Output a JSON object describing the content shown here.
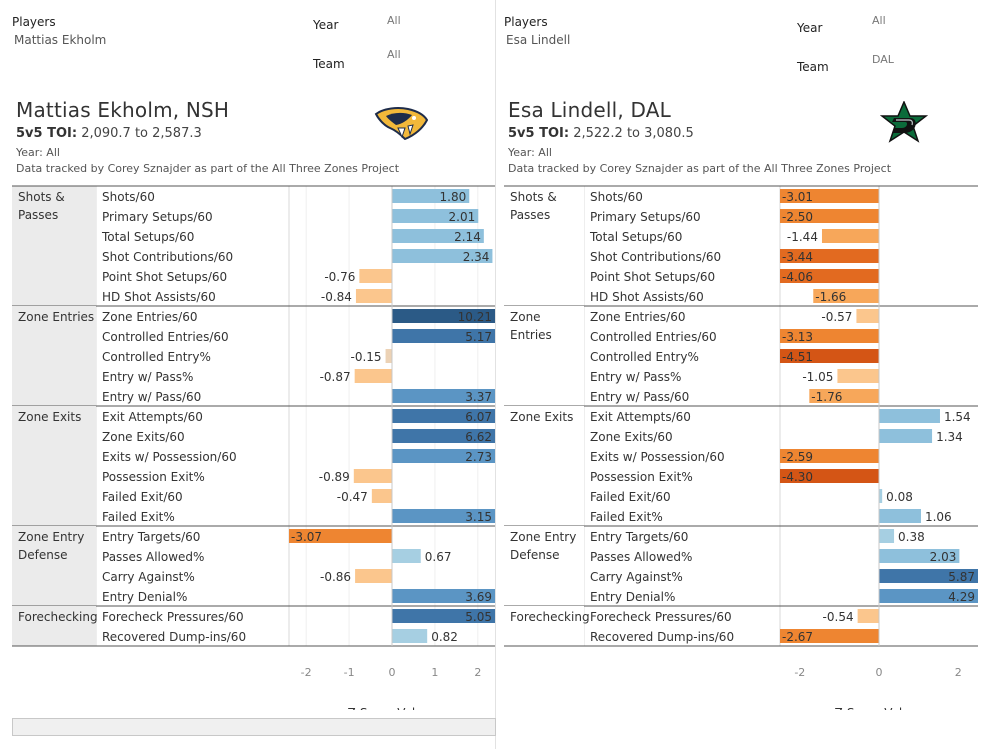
{
  "left": {
    "filters": {
      "players_label": "Players",
      "players_value": "Mattias Ekholm",
      "year_label": "Year",
      "year_value": "All",
      "team_label": "Team",
      "team_value": "All"
    },
    "title": "Mattias Ekholm, NSH",
    "toi_label": "5v5 TOI:",
    "toi_value": "2,090.7 to 2,587.3",
    "year_line": "Year: All",
    "credit": "Data tracked by Corey Sznajder as part of the All Three Zones Project",
    "logo": "nashville-predators-logo-icon"
  },
  "right": {
    "filters": {
      "players_label": "Players",
      "players_value": "Esa Lindell",
      "year_label": "Year",
      "year_value": "All",
      "team_label": "Team",
      "team_value": "DAL"
    },
    "title": "Esa Lindell, DAL",
    "toi_label": "5v5 TOI:",
    "toi_value": "2,522.2 to 3,080.5",
    "year_line": "Year: All",
    "credit": "Data tracked by Corey Sznajder as part of the All Three Zones Project",
    "logo": "dallas-stars-logo-icon"
  },
  "colors": {
    "pos_light": "#a6cfe2",
    "pos_mid": "#8ec0dc",
    "pos_dark1": "#5b95c4",
    "pos_dark2": "#3f75a8",
    "pos_darkest": "#2b5a86",
    "neg_light": "#fbc68d",
    "neg_mid": "#f7a75a",
    "neg_dark": "#ee8531",
    "neg_darker": "#e26a20",
    "neg_darkest": "#d45515",
    "neutral_light": "#ecd2b5",
    "group_bg": "#ebebeb"
  },
  "chart_data": [
    {
      "type": "bar",
      "title": "Mattias Ekholm, NSH",
      "xlabel": "Z-Score Values",
      "xlim": [
        -2.4,
        2.4
      ],
      "xticks": [
        -2,
        -1,
        0,
        1,
        2
      ],
      "groups": [
        {
          "name": "Shots & Passes",
          "items": [
            {
              "label": "Shots/60",
              "value": 1.8,
              "text": "1.80"
            },
            {
              "label": "Primary Setups/60",
              "value": 2.01,
              "text": "2.01"
            },
            {
              "label": "Total Setups/60",
              "value": 2.14,
              "text": "2.14"
            },
            {
              "label": "Shot Contributions/60",
              "value": 2.34,
              "text": "2.34"
            },
            {
              "label": "Point Shot Setups/60",
              "value": -0.76,
              "text": "-0.76"
            },
            {
              "label": "HD Shot Assists/60",
              "value": -0.84,
              "text": "-0.84"
            }
          ]
        },
        {
          "name": "Zone Entries",
          "items": [
            {
              "label": "Zone Entries/60",
              "value": 10.21,
              "text": "10.21"
            },
            {
              "label": "Controlled Entries/60",
              "value": 5.17,
              "text": "5.17"
            },
            {
              "label": "Controlled Entry%",
              "value": -0.15,
              "text": "-0.15"
            },
            {
              "label": "Entry w/ Pass%",
              "value": -0.87,
              "text": "-0.87"
            },
            {
              "label": "Entry w/ Pass/60",
              "value": 3.37,
              "text": "3.37"
            }
          ]
        },
        {
          "name": "Zone Exits",
          "items": [
            {
              "label": "Exit Attempts/60",
              "value": 6.07,
              "text": "6.07"
            },
            {
              "label": "Zone Exits/60",
              "value": 6.62,
              "text": "6.62"
            },
            {
              "label": "Exits w/ Possession/60",
              "value": 2.73,
              "text": "2.73"
            },
            {
              "label": "Possession Exit%",
              "value": -0.89,
              "text": "-0.89"
            },
            {
              "label": "Failed Exit/60",
              "value": -0.47,
              "text": "-0.47"
            },
            {
              "label": "Failed Exit%",
              "value": 3.15,
              "text": "3.15"
            }
          ]
        },
        {
          "name": "Zone Entry Defense",
          "items": [
            {
              "label": "Entry Targets/60",
              "value": -3.07,
              "text": "-3.07"
            },
            {
              "label": "Passes Allowed%",
              "value": 0.67,
              "text": "0.67"
            },
            {
              "label": "Carry Against%",
              "value": -0.86,
              "text": "-0.86"
            },
            {
              "label": "Entry Denial%",
              "value": 3.69,
              "text": "3.69"
            }
          ]
        },
        {
          "name": "Forechecking",
          "items": [
            {
              "label": "Forecheck Pressures/60",
              "value": 5.05,
              "text": "5.05"
            },
            {
              "label": "Recovered Dump-ins/60",
              "value": 0.82,
              "text": "0.82"
            }
          ]
        }
      ]
    },
    {
      "type": "bar",
      "title": "Esa Lindell, DAL",
      "xlabel": "Z-Score Values",
      "xlim": [
        -2.5,
        2.5
      ],
      "xticks": [
        -2,
        0,
        2
      ],
      "groups": [
        {
          "name": "Shots & Passes",
          "items": [
            {
              "label": "Shots/60",
              "value": -3.01,
              "text": "-3.01"
            },
            {
              "label": "Primary Setups/60",
              "value": -2.5,
              "text": "-2.50"
            },
            {
              "label": "Total Setups/60",
              "value": -1.44,
              "text": "-1.44"
            },
            {
              "label": "Shot Contributions/60",
              "value": -3.44,
              "text": "-3.44"
            },
            {
              "label": "Point Shot Setups/60",
              "value": -4.06,
              "text": "-4.06"
            },
            {
              "label": "HD Shot Assists/60",
              "value": -1.66,
              "text": "-1.66"
            }
          ]
        },
        {
          "name": "Zone Entries",
          "items": [
            {
              "label": "Zone Entries/60",
              "value": -0.57,
              "text": "-0.57"
            },
            {
              "label": "Controlled Entries/60",
              "value": -3.13,
              "text": "-3.13"
            },
            {
              "label": "Controlled Entry%",
              "value": -4.51,
              "text": "-4.51"
            },
            {
              "label": "Entry w/ Pass%",
              "value": -1.05,
              "text": "-1.05"
            },
            {
              "label": "Entry w/ Pass/60",
              "value": -1.76,
              "text": "-1.76"
            }
          ]
        },
        {
          "name": "Zone Exits",
          "items": [
            {
              "label": "Exit Attempts/60",
              "value": 1.54,
              "text": "1.54"
            },
            {
              "label": "Zone Exits/60",
              "value": 1.34,
              "text": "1.34"
            },
            {
              "label": "Exits w/ Possession/60",
              "value": -2.59,
              "text": "-2.59"
            },
            {
              "label": "Possession Exit%",
              "value": -4.3,
              "text": "-4.30"
            },
            {
              "label": "Failed Exit/60",
              "value": 0.08,
              "text": "0.08"
            },
            {
              "label": "Failed Exit%",
              "value": 1.06,
              "text": "1.06"
            }
          ]
        },
        {
          "name": "Zone Entry Defense",
          "items": [
            {
              "label": "Entry Targets/60",
              "value": 0.38,
              "text": "0.38"
            },
            {
              "label": "Passes Allowed%",
              "value": 2.03,
              "text": "2.03"
            },
            {
              "label": "Carry Against%",
              "value": 5.87,
              "text": "5.87"
            },
            {
              "label": "Entry Denial%",
              "value": 4.29,
              "text": "4.29"
            }
          ]
        },
        {
          "name": "Forechecking",
          "items": [
            {
              "label": "Forecheck Pressures/60",
              "value": -0.54,
              "text": "-0.54"
            },
            {
              "label": "Recovered Dump-ins/60",
              "value": -2.67,
              "text": "-2.67"
            }
          ]
        }
      ]
    }
  ]
}
